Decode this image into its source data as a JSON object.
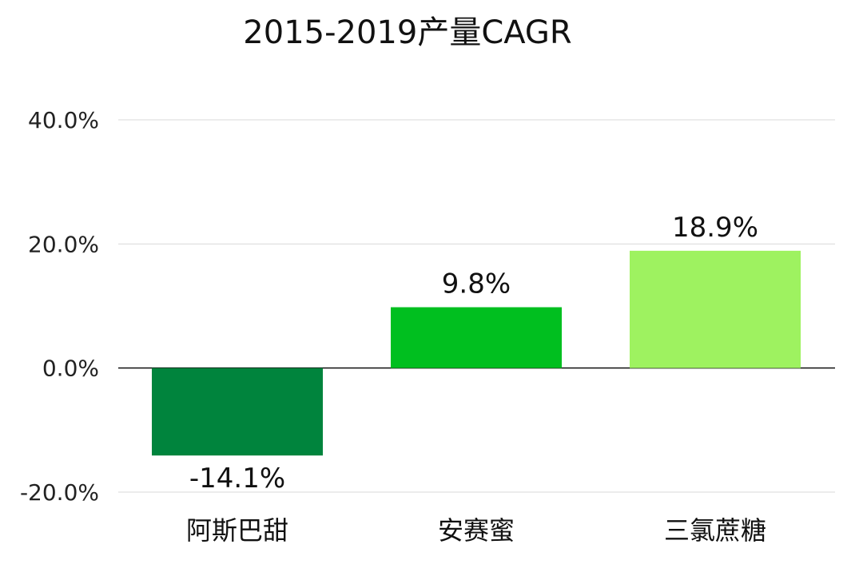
{
  "chart_data": {
    "type": "bar",
    "title": "2015-2019产量CAGR",
    "categories": [
      "阿斯巴甜",
      "安赛蜜",
      "三氯蔗糖"
    ],
    "values": [
      -14.1,
      9.8,
      18.9
    ],
    "data_labels": [
      "-14.1%",
      "9.8%",
      "18.9%"
    ],
    "bar_colors": [
      "#00843d",
      "#00bf1f",
      "#9ef260"
    ],
    "ylim": [
      -20,
      40
    ],
    "yticks": [
      40,
      20,
      0,
      -20
    ],
    "ytick_labels": [
      "40.0%",
      "20.0%",
      "0.0%",
      "-20.0%"
    ],
    "grid": true,
    "legend": "none"
  }
}
